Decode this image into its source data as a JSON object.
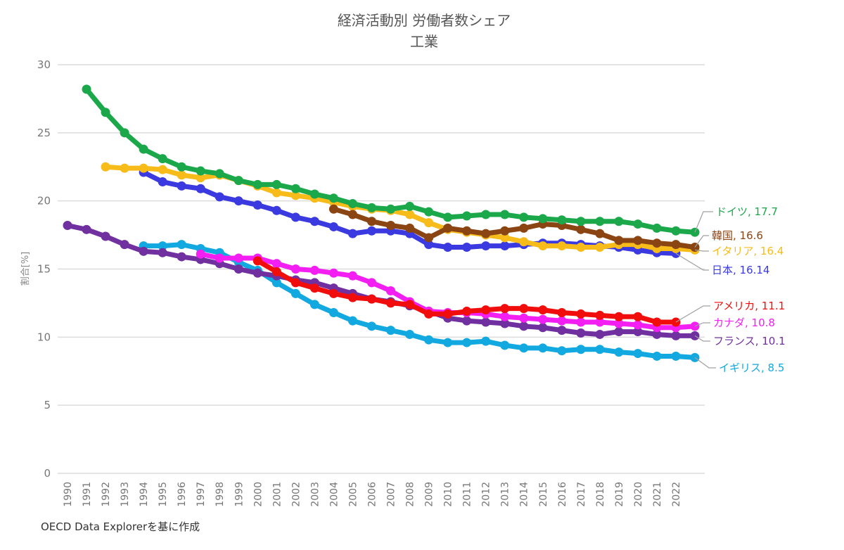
{
  "chart_data": {
    "type": "line",
    "title": "経済活動別 労働者数シェア",
    "subtitle": "工業",
    "xlabel": "",
    "ylabel": "割合[%]",
    "ylim": [
      0,
      30
    ],
    "yticks": [
      0,
      5,
      10,
      15,
      20,
      25,
      30
    ],
    "grid": true,
    "legend": "end-of-line labels (right)",
    "x": [
      1990,
      1991,
      1992,
      1993,
      1994,
      1995,
      1996,
      1997,
      1998,
      1999,
      2000,
      2001,
      2002,
      2003,
      2004,
      2005,
      2006,
      2007,
      2008,
      2009,
      2010,
      2011,
      2012,
      2013,
      2014,
      2015,
      2016,
      2017,
      2018,
      2019,
      2020,
      2021,
      2022,
      2023
    ],
    "xtick_labels": [
      "1990",
      "1991",
      "1992",
      "1993",
      "1994",
      "1995",
      "1996",
      "1997",
      "1998",
      "1999",
      "2000",
      "2001",
      "2002",
      "2003",
      "2004",
      "2005",
      "2006",
      "2007",
      "2008",
      "2009",
      "2010",
      "2011",
      "2012",
      "2013",
      "2014",
      "2015",
      "2016",
      "2017",
      "2018",
      "2019",
      "2020",
      "2021",
      "2022",
      ""
    ],
    "series": [
      {
        "name": "ドイツ",
        "label": "ドイツ, 17.7",
        "color": "#1aa84a",
        "values": [
          null,
          28.2,
          26.5,
          25.0,
          23.8,
          23.1,
          22.5,
          22.2,
          22.0,
          21.5,
          21.2,
          21.2,
          20.9,
          20.5,
          20.2,
          19.8,
          19.5,
          19.4,
          19.6,
          19.2,
          18.8,
          18.9,
          19.0,
          19.0,
          18.8,
          18.7,
          18.6,
          18.5,
          18.5,
          18.5,
          18.3,
          18.0,
          17.8,
          17.7
        ]
      },
      {
        "name": "韓国",
        "label": "韓国, 16.6",
        "color": "#8b4513",
        "values": [
          null,
          null,
          null,
          null,
          null,
          null,
          null,
          null,
          null,
          null,
          null,
          null,
          null,
          null,
          19.4,
          19.0,
          18.5,
          18.2,
          18.0,
          17.3,
          18.0,
          17.8,
          17.6,
          17.8,
          18.0,
          18.3,
          18.2,
          17.9,
          17.6,
          17.1,
          17.1,
          16.9,
          16.8,
          16.6
        ]
      },
      {
        "name": "イタリア",
        "label": "イタリア, 16.4",
        "color": "#f7bb1a",
        "values": [
          null,
          null,
          22.5,
          22.4,
          22.4,
          22.3,
          21.9,
          21.7,
          21.9,
          21.5,
          21.1,
          20.6,
          20.4,
          20.2,
          19.9,
          19.6,
          19.4,
          19.3,
          19.0,
          18.4,
          17.9,
          17.7,
          17.5,
          17.3,
          17.0,
          16.7,
          16.7,
          16.6,
          16.6,
          16.8,
          16.8,
          16.5,
          16.5,
          16.4
        ]
      },
      {
        "name": "日本",
        "label": "日本, 16.14",
        "color": "#3a3ae0",
        "values": [
          null,
          null,
          null,
          null,
          22.1,
          21.4,
          21.1,
          20.9,
          20.3,
          20.0,
          19.7,
          19.3,
          18.8,
          18.5,
          18.1,
          17.6,
          17.8,
          17.8,
          17.6,
          16.8,
          16.6,
          16.6,
          16.7,
          16.7,
          16.8,
          16.9,
          16.9,
          16.8,
          16.7,
          16.6,
          16.4,
          16.2,
          16.14,
          null
        ]
      },
      {
        "name": "アメリカ",
        "label": "アメリカ, 11.1",
        "color": "#f20d0d",
        "values": [
          null,
          null,
          null,
          null,
          null,
          null,
          null,
          null,
          null,
          null,
          15.6,
          14.8,
          14.0,
          13.6,
          13.2,
          12.9,
          12.8,
          12.5,
          12.4,
          11.7,
          11.7,
          11.9,
          12.0,
          12.1,
          12.1,
          12.0,
          11.8,
          11.7,
          11.6,
          11.5,
          11.5,
          11.1,
          11.1,
          null
        ]
      },
      {
        "name": "カナダ",
        "label": "カナダ, 10.8",
        "color": "#f21ef2",
        "values": [
          null,
          null,
          null,
          null,
          null,
          null,
          null,
          16.1,
          15.8,
          15.8,
          15.8,
          15.4,
          15.0,
          14.9,
          14.7,
          14.5,
          14.0,
          13.4,
          12.6,
          11.9,
          11.8,
          11.8,
          11.7,
          11.5,
          11.4,
          11.3,
          11.2,
          11.1,
          11.1,
          11.0,
          10.9,
          10.7,
          10.7,
          10.8
        ]
      },
      {
        "name": "フランス",
        "label": "フランス, 10.1",
        "color": "#7030a0",
        "values": [
          18.2,
          17.9,
          17.4,
          16.8,
          16.3,
          16.2,
          15.9,
          15.7,
          15.4,
          15.0,
          14.7,
          14.5,
          14.2,
          14.0,
          13.6,
          13.2,
          12.8,
          12.6,
          12.3,
          11.9,
          11.4,
          11.2,
          11.1,
          11.0,
          10.8,
          10.7,
          10.5,
          10.3,
          10.2,
          10.4,
          10.4,
          10.2,
          10.1,
          10.1
        ]
      },
      {
        "name": "イギリス",
        "label": "イギリス, 8.5",
        "color": "#12a8e0",
        "values": [
          null,
          null,
          null,
          null,
          16.7,
          16.7,
          16.8,
          16.5,
          16.2,
          15.5,
          14.9,
          14.0,
          13.2,
          12.4,
          11.8,
          11.2,
          10.8,
          10.5,
          10.2,
          9.8,
          9.6,
          9.6,
          9.7,
          9.4,
          9.2,
          9.2,
          9.0,
          9.1,
          9.1,
          8.9,
          8.8,
          8.6,
          8.6,
          8.5
        ]
      }
    ]
  },
  "footer": {
    "source": "OECD Data Explorerを基に作成"
  }
}
